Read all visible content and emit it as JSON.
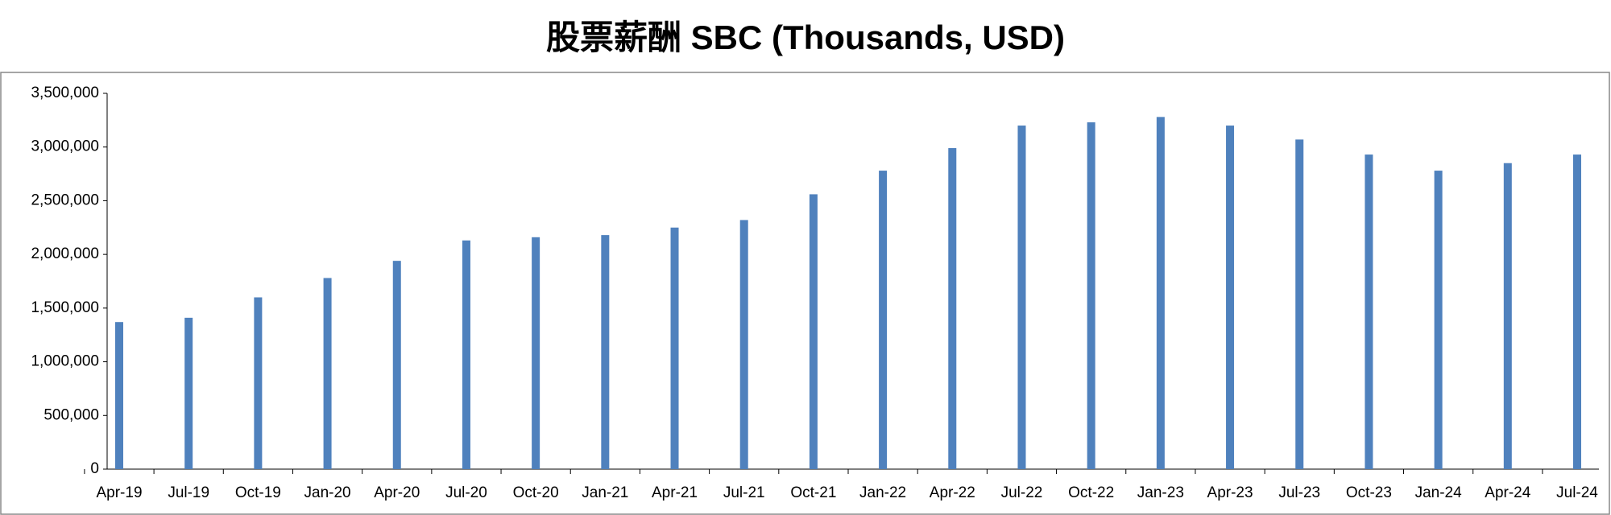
{
  "chart_data": {
    "type": "bar",
    "title": "股票薪酬 SBC (Thousands, USD)",
    "categories": [
      "Apr-19",
      "Jul-19",
      "Oct-19",
      "Jan-20",
      "Apr-20",
      "Jul-20",
      "Oct-20",
      "Jan-21",
      "Apr-21",
      "Jul-21",
      "Oct-21",
      "Jan-22",
      "Apr-22",
      "Jul-22",
      "Oct-22",
      "Jan-23",
      "Apr-23",
      "Jul-23",
      "Oct-23",
      "Jan-24",
      "Apr-24",
      "Jul-24"
    ],
    "values": [
      1370000,
      1410000,
      1600000,
      1780000,
      1940000,
      2130000,
      2160000,
      2180000,
      2250000,
      2320000,
      2560000,
      2780000,
      2990000,
      3200000,
      3230000,
      3280000,
      3200000,
      3070000,
      2930000,
      2780000,
      2850000,
      2930000
    ],
    "color": "#4f81bd",
    "ylim": [
      0,
      3500000
    ],
    "yticks": [
      0,
      {
        "value": 500000,
        "label": "500,000"
      },
      {
        "value": 1000000,
        "label": "1,000,000"
      },
      {
        "value": 1500000,
        "label": "1,500,000"
      },
      {
        "value": 2000000,
        "label": "2,000,000"
      },
      {
        "value": 2500000,
        "label": "2,500,000"
      },
      {
        "value": 3000000,
        "label": "3,000,000"
      },
      {
        "value": 3500000,
        "label": "3,500,000"
      }
    ],
    "grid": false
  }
}
